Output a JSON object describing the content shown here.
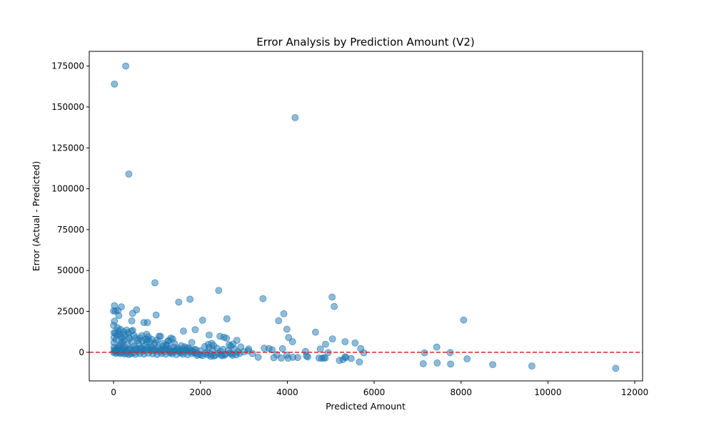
{
  "chart_data": {
    "type": "scatter",
    "title": "Error Analysis by Prediction Amount (V2)",
    "xlabel": "Predicted Amount",
    "ylabel": "Error (Actual - Predicted)",
    "xlim": [
      -560,
      12180
    ],
    "ylim": [
      -17500,
      184000
    ],
    "xticks": [
      0,
      2000,
      4000,
      6000,
      8000,
      10000,
      12000
    ],
    "yticks": [
      0,
      25000,
      50000,
      75000,
      100000,
      125000,
      150000,
      175000
    ],
    "grid": false,
    "reference_line": {
      "y": 0,
      "color": "#d62728",
      "style": "dashed"
    },
    "point_color": "#1f77b4",
    "point_alpha": 0.5,
    "points": [
      [
        280,
        175000
      ],
      [
        20,
        164000
      ],
      [
        4180,
        143500
      ],
      [
        350,
        109000
      ],
      [
        950,
        42500
      ],
      [
        2420,
        37800
      ],
      [
        3440,
        32800
      ],
      [
        1760,
        32500
      ],
      [
        5030,
        33800
      ],
      [
        1500,
        30700
      ],
      [
        20,
        28500
      ],
      [
        5080,
        28000
      ],
      [
        180,
        27800
      ],
      [
        530,
        26000
      ],
      [
        0,
        25300
      ],
      [
        40,
        25200
      ],
      [
        100,
        25500
      ],
      [
        440,
        23800
      ],
      [
        3920,
        23600
      ],
      [
        980,
        22800
      ],
      [
        120,
        22400
      ],
      [
        2610,
        20500
      ],
      [
        2050,
        19600
      ],
      [
        8060,
        19700
      ],
      [
        3800,
        19300
      ],
      [
        20,
        19000
      ],
      [
        420,
        19200
      ],
      [
        700,
        18200
      ],
      [
        780,
        18200
      ],
      [
        0,
        16400
      ],
      [
        90,
        15100
      ],
      [
        3990,
        14100
      ],
      [
        160,
        14000
      ],
      [
        1880,
        13800
      ],
      [
        300,
        13500
      ],
      [
        440,
        13400
      ],
      [
        1610,
        13000
      ],
      [
        4650,
        12300
      ],
      [
        40,
        11800
      ],
      [
        760,
        11000
      ],
      [
        2200,
        10600
      ],
      [
        4030,
        9000
      ],
      [
        2450,
        9800
      ],
      [
        1080,
        9800
      ],
      [
        2540,
        9200
      ],
      [
        2600,
        8600
      ],
      [
        1320,
        8700
      ],
      [
        2840,
        7300
      ],
      [
        5040,
        8200
      ],
      [
        4120,
        6500
      ],
      [
        5330,
        6500
      ],
      [
        5560,
        5700
      ],
      [
        2260,
        5500
      ],
      [
        2750,
        5000
      ],
      [
        2180,
        4800
      ],
      [
        4880,
        4900
      ],
      [
        7440,
        3200
      ],
      [
        5690,
        2300
      ],
      [
        2930,
        3300
      ],
      [
        3470,
        2500
      ],
      [
        3580,
        2300
      ],
      [
        3890,
        2200
      ],
      [
        3110,
        2100
      ],
      [
        4760,
        2000
      ],
      [
        1800,
        6000
      ],
      [
        2300,
        4200
      ],
      [
        2660,
        4600
      ],
      [
        2700,
        3800
      ],
      [
        3650,
        1500
      ],
      [
        4420,
        500
      ],
      [
        4940,
        -200
      ],
      [
        5760,
        -300
      ],
      [
        7160,
        -300
      ],
      [
        7750,
        -200
      ],
      [
        3200,
        -800
      ],
      [
        3760,
        -1500
      ],
      [
        3990,
        -1700
      ],
      [
        4440,
        -2200
      ],
      [
        4470,
        -2800
      ],
      [
        4130,
        -3000
      ],
      [
        4240,
        -3200
      ],
      [
        3690,
        -3300
      ],
      [
        3860,
        -3500
      ],
      [
        4020,
        -3600
      ],
      [
        4730,
        -3500
      ],
      [
        4790,
        -3700
      ],
      [
        4840,
        -3300
      ],
      [
        4870,
        -3600
      ],
      [
        5330,
        -2800
      ],
      [
        5350,
        -3200
      ],
      [
        5470,
        -3800
      ],
      [
        5280,
        -4400
      ],
      [
        5200,
        -5000
      ],
      [
        5660,
        -5900
      ],
      [
        7450,
        -6500
      ],
      [
        7130,
        -7000
      ],
      [
        7760,
        -7200
      ],
      [
        8140,
        -4000
      ],
      [
        8730,
        -7500
      ],
      [
        9630,
        -8400
      ],
      [
        11560,
        -9800
      ],
      [
        1000,
        7500
      ],
      [
        1050,
        9800
      ],
      [
        650,
        10200
      ],
      [
        800,
        9500
      ],
      [
        350,
        9100
      ],
      [
        200,
        8800
      ],
      [
        1250,
        6800
      ],
      [
        1400,
        5500
      ],
      [
        1560,
        4000
      ],
      [
        1700,
        2800
      ],
      [
        1900,
        1500
      ],
      [
        2000,
        900
      ],
      [
        2150,
        200
      ],
      [
        2250,
        -1200
      ],
      [
        2350,
        -1800
      ],
      [
        2480,
        -1500
      ],
      [
        2580,
        -1100
      ],
      [
        2720,
        -900
      ],
      [
        2820,
        -1600
      ],
      [
        2900,
        -700
      ],
      [
        3000,
        300
      ],
      [
        3100,
        900
      ],
      [
        3330,
        -3000
      ],
      [
        2000,
        -1500
      ],
      [
        1950,
        -1200
      ],
      [
        1800,
        -800
      ],
      [
        1700,
        -1400
      ],
      [
        1600,
        -1100
      ],
      [
        1550,
        -500
      ],
      [
        1450,
        -1300
      ],
      [
        1350,
        -900
      ],
      [
        1300,
        -400
      ],
      [
        1200,
        -1100
      ],
      [
        1100,
        -700
      ],
      [
        1000,
        -1300
      ],
      [
        900,
        -900
      ],
      [
        800,
        -500
      ],
      [
        700,
        -1100
      ],
      [
        600,
        -800
      ],
      [
        500,
        -1200
      ],
      [
        450,
        -300
      ],
      [
        400,
        -900
      ],
      [
        350,
        -1300
      ],
      [
        300,
        -700
      ],
      [
        250,
        -1000
      ],
      [
        200,
        -400
      ],
      [
        150,
        -800
      ],
      [
        100,
        -200
      ],
      [
        50,
        -600
      ],
      [
        0,
        -100
      ],
      [
        30,
        500
      ],
      [
        60,
        1200
      ],
      [
        90,
        2500
      ],
      [
        120,
        3500
      ],
      [
        150,
        4200
      ],
      [
        180,
        5500
      ],
      [
        210,
        6500
      ],
      [
        240,
        7200
      ],
      [
        270,
        3000
      ],
      [
        320,
        4800
      ],
      [
        380,
        2100
      ],
      [
        420,
        6200
      ],
      [
        480,
        3700
      ],
      [
        540,
        1500
      ],
      [
        580,
        5200
      ],
      [
        630,
        2800
      ],
      [
        680,
        800
      ],
      [
        720,
        4100
      ],
      [
        760,
        6400
      ],
      [
        820,
        2200
      ],
      [
        860,
        3400
      ],
      [
        920,
        1100
      ],
      [
        970,
        5800
      ],
      [
        1020,
        2700
      ],
      [
        1080,
        600
      ],
      [
        1140,
        3900
      ],
      [
        1180,
        1700
      ],
      [
        1230,
        4600
      ],
      [
        1280,
        2300
      ],
      [
        1340,
        800
      ],
      [
        1380,
        3200
      ],
      [
        1430,
        1400
      ],
      [
        1480,
        2600
      ],
      [
        1520,
        300
      ],
      [
        1580,
        1900
      ],
      [
        1640,
        3300
      ],
      [
        1680,
        700
      ],
      [
        1740,
        2400
      ],
      [
        1820,
        400
      ],
      [
        1860,
        1800
      ],
      [
        2100,
        3500
      ],
      [
        2200,
        2800
      ],
      [
        2280,
        1600
      ],
      [
        2380,
        2500
      ],
      [
        2460,
        600
      ],
      [
        2520,
        1800
      ],
      [
        2640,
        1100
      ],
      [
        2780,
        2000
      ],
      [
        2860,
        400
      ],
      [
        10,
        3000
      ],
      [
        10,
        6000
      ],
      [
        10,
        9000
      ],
      [
        10,
        12000
      ],
      [
        60,
        7800
      ],
      [
        80,
        10500
      ],
      [
        110,
        13200
      ],
      [
        140,
        11000
      ],
      [
        170,
        9500
      ],
      [
        230,
        12500
      ],
      [
        260,
        10800
      ],
      [
        330,
        11800
      ],
      [
        370,
        8400
      ],
      [
        410,
        12900
      ],
      [
        470,
        10300
      ],
      [
        520,
        8900
      ],
      [
        560,
        7300
      ],
      [
        610,
        8600
      ],
      [
        660,
        6900
      ],
      [
        740,
        8100
      ],
      [
        790,
        7700
      ],
      [
        840,
        6500
      ],
      [
        880,
        7900
      ],
      [
        940,
        5100
      ],
      [
        1130,
        5400
      ],
      [
        1210,
        4300
      ],
      [
        1270,
        7200
      ],
      [
        1360,
        8100
      ],
      [
        20,
        1500
      ],
      [
        40,
        800
      ],
      [
        70,
        2000
      ],
      [
        110,
        1000
      ],
      [
        140,
        300
      ],
      [
        190,
        1800
      ],
      [
        220,
        2600
      ],
      [
        260,
        1400
      ],
      [
        290,
        500
      ],
      [
        340,
        1900
      ],
      [
        390,
        800
      ],
      [
        460,
        1600
      ],
      [
        510,
        2400
      ],
      [
        570,
        500
      ],
      [
        620,
        1800
      ],
      [
        670,
        2300
      ],
      [
        730,
        1300
      ],
      [
        780,
        2800
      ],
      [
        850,
        1000
      ],
      [
        890,
        2100
      ],
      [
        950,
        1500
      ],
      [
        1010,
        900
      ],
      [
        1070,
        2000
      ],
      [
        1120,
        1400
      ],
      [
        1170,
        500
      ],
      [
        1220,
        2000
      ],
      [
        1290,
        1000
      ],
      [
        1320,
        200
      ],
      [
        1410,
        600
      ],
      [
        1460,
        1800
      ],
      [
        1510,
        900
      ],
      [
        1590,
        600
      ],
      [
        1660,
        1500
      ],
      [
        1720,
        500
      ],
      [
        1790,
        1300
      ],
      [
        1840,
        200
      ],
      [
        1880,
        -500
      ],
      [
        1920,
        -1900
      ],
      [
        2050,
        -2000
      ],
      [
        2110,
        -700
      ],
      [
        2170,
        -1600
      ],
      [
        2240,
        -2500
      ],
      [
        2310,
        -2300
      ],
      [
        2410,
        -800
      ],
      [
        2500,
        -2100
      ],
      [
        2560,
        -1700
      ],
      [
        2680,
        -500
      ],
      [
        2740,
        -1800
      ]
    ]
  }
}
